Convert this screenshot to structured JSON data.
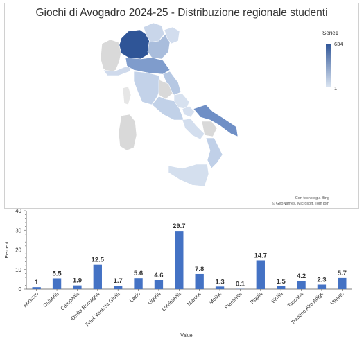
{
  "map": {
    "title": "Giochi di Avogadro 2024-25 - Distribuzione regionale studenti",
    "legend": {
      "title": "Serie1",
      "max": "634",
      "min": "1",
      "color_max": "#2f5597",
      "color_min": "#dce6f2"
    },
    "attribution_line1": "Con tecnologia Bing",
    "attribution_line2": "© GeoNames, Microsoft, TomTom"
  },
  "chart_data": {
    "type": "bar",
    "categories": [
      "Abruzzo",
      "Calabria",
      "Campania",
      "Emilia Romagna",
      "Friuli Venezia Giulia",
      "Lazio",
      "Liguria",
      "Lombardia",
      "Marche",
      "Molise",
      "Piemonte",
      "Puglia",
      "Sicilia",
      "Toscana",
      "Trentino Alto Adige",
      "Veneto"
    ],
    "values": [
      1,
      5.5,
      1.9,
      12.5,
      1.7,
      5.6,
      4.6,
      29.7,
      7.8,
      1.3,
      0.1,
      14.7,
      1.5,
      4.2,
      2.3,
      5.7
    ],
    "data_labels": [
      "1",
      "5.5",
      "1.9",
      "12.5",
      "1.7",
      "5.6",
      "4.6",
      "29.7",
      "7.8",
      "1.3",
      "0.1",
      "14.7",
      "1.5",
      "4.2",
      "2.3",
      "5.7"
    ],
    "xlabel": "Value",
    "ylabel": "Percent",
    "ylim": [
      0,
      40
    ],
    "yticks": [
      0,
      10,
      20,
      30,
      40
    ],
    "bar_color": "#4472c4",
    "grid": false
  }
}
